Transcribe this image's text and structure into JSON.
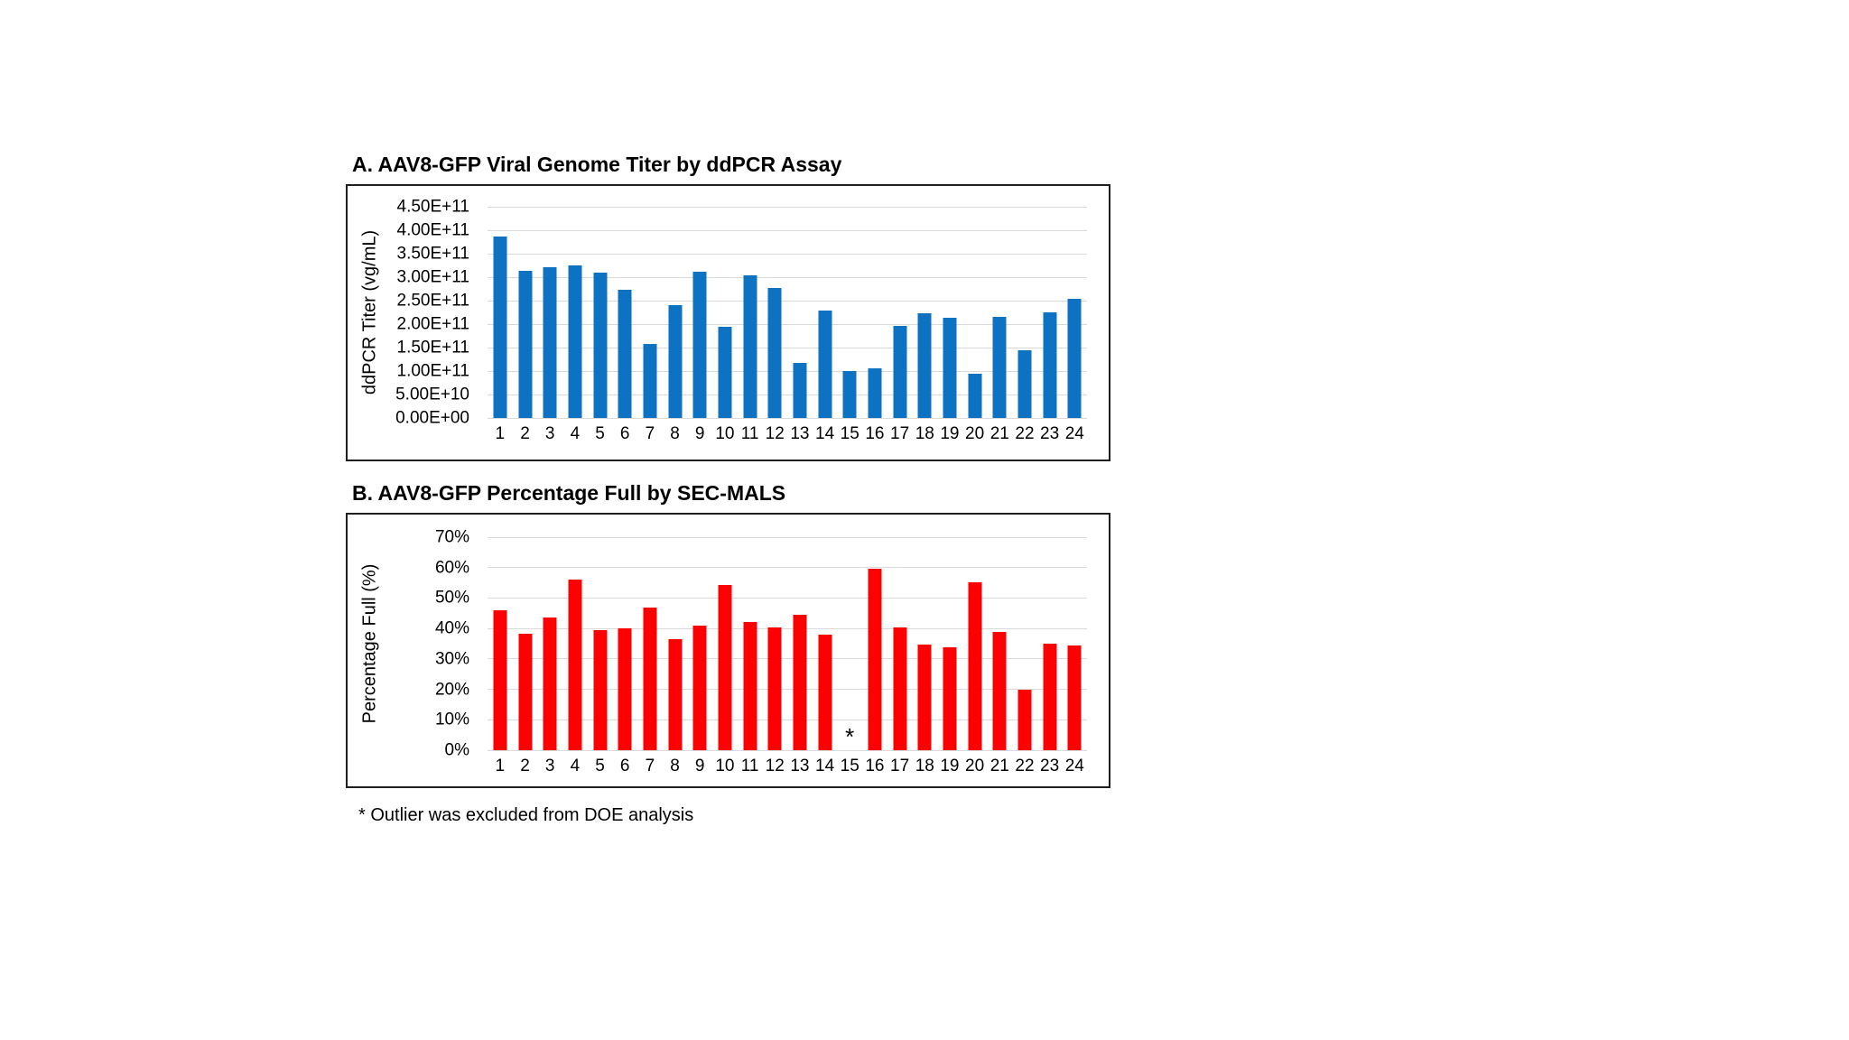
{
  "footnote": "* Outlier was excluded from DOE analysis",
  "colors": {
    "chart_a_bar": "#0e72c2",
    "chart_b_bar": "#ff0000",
    "gridline": "#d9d9d9",
    "frame_border": "#1f1f1f",
    "text": "#000000",
    "background": "#ffffff"
  },
  "chart_data": [
    {
      "panel": "A",
      "type": "bar",
      "title": "A. AAV8-GFP Viral Genome Titer by ddPCR Assay",
      "xlabel": "",
      "ylabel": "ddPCR Titer (vg/mL)",
      "categories": [
        "1",
        "2",
        "3",
        "4",
        "5",
        "6",
        "7",
        "8",
        "9",
        "10",
        "11",
        "12",
        "13",
        "14",
        "15",
        "16",
        "17",
        "18",
        "19",
        "20",
        "21",
        "22",
        "23",
        "24"
      ],
      "values": [
        387000000000.0,
        313000000000.0,
        322000000000.0,
        325000000000.0,
        309000000000.0,
        274000000000.0,
        157000000000.0,
        241000000000.0,
        312000000000.0,
        195000000000.0,
        303000000000.0,
        277000000000.0,
        117000000000.0,
        228000000000.0,
        100000000000.0,
        106000000000.0,
        197000000000.0,
        223000000000.0,
        214000000000.0,
        95000000000.0,
        215000000000.0,
        144000000000.0,
        225000000000.0,
        254000000000.0
      ],
      "ylim": [
        0,
        450000000000.0
      ],
      "ytick_labels": [
        "0.00E+00",
        "5.00E+10",
        "1.00E+11",
        "1.50E+11",
        "2.00E+11",
        "2.50E+11",
        "3.00E+11",
        "3.50E+11",
        "4.00E+11",
        "4.50E+11"
      ],
      "grid": true,
      "legend": false,
      "bar_color": "#0e72c2",
      "annotations": []
    },
    {
      "panel": "B",
      "type": "bar",
      "title": "B. AAV8-GFP Percentage Full by SEC-MALS",
      "xlabel": "",
      "ylabel": "Percentage Full (%)",
      "categories": [
        "1",
        "2",
        "3",
        "4",
        "5",
        "6",
        "7",
        "8",
        "9",
        "10",
        "11",
        "12",
        "13",
        "14",
        "15",
        "16",
        "17",
        "18",
        "19",
        "20",
        "21",
        "22",
        "23",
        "24"
      ],
      "values": [
        46,
        38.3,
        43.6,
        56,
        39.5,
        40,
        46.9,
        36.5,
        41,
        54.2,
        42.2,
        40.3,
        44.6,
        37.9,
        null,
        59.6,
        40.3,
        34.7,
        33.9,
        55.1,
        38.9,
        19.9,
        35.1,
        34.3
      ],
      "ylim": [
        0,
        70
      ],
      "ytick_labels": [
        "0%",
        "10%",
        "20%",
        "30%",
        "40%",
        "50%",
        "60%",
        "70%"
      ],
      "grid": true,
      "legend": false,
      "bar_color": "#ff0000",
      "annotations": [
        {
          "category": "15",
          "symbol": "*"
        }
      ]
    }
  ]
}
